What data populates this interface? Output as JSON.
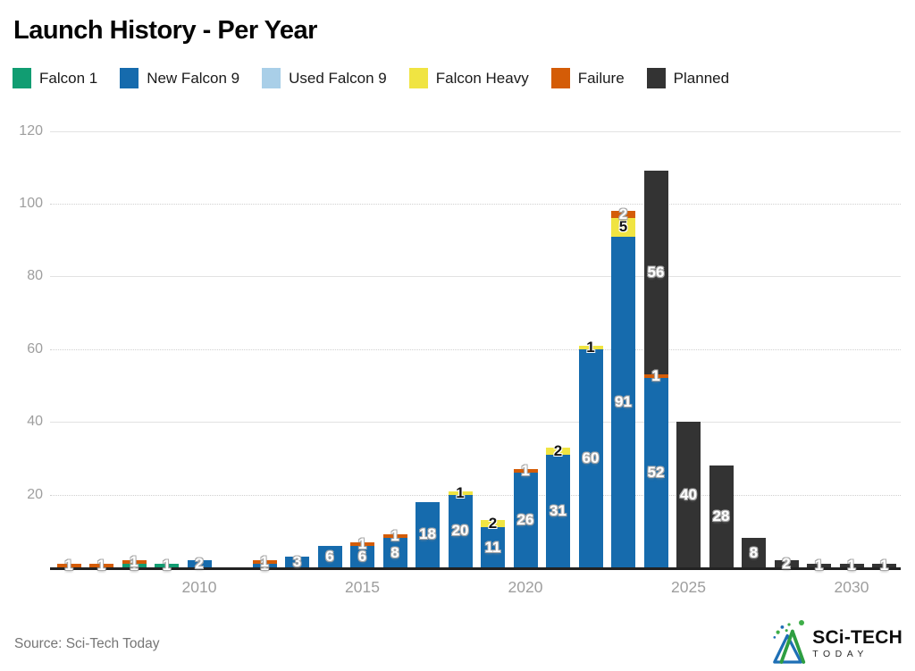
{
  "title": "Launch History - Per Year",
  "source": "Source: Sci-Tech Today",
  "logo": {
    "line1": "SCi-TECH",
    "line2": "TODAY"
  },
  "chart_data": {
    "type": "bar",
    "stacked": true,
    "title": "Launch History - Per Year",
    "xlabel": "",
    "ylabel": "",
    "ylim": [
      0,
      120
    ],
    "grid": true,
    "legend_position": "top",
    "categories": [
      2006,
      2007,
      2008,
      2009,
      2010,
      2011,
      2012,
      2013,
      2014,
      2015,
      2016,
      2017,
      2018,
      2019,
      2020,
      2021,
      2022,
      2023,
      2024,
      2025,
      2026,
      2027,
      2028,
      2029,
      2030,
      2031
    ],
    "y_ticks": [
      20,
      40,
      60,
      80,
      100,
      120
    ],
    "x_ticks": [
      2010,
      2015,
      2020,
      2025,
      2030
    ],
    "series": [
      {
        "name": "Falcon 1",
        "color": "#119d72",
        "label_color": "white",
        "values": [
          0,
          0,
          1,
          1,
          0,
          0,
          0,
          0,
          0,
          0,
          0,
          0,
          0,
          0,
          0,
          0,
          0,
          0,
          0,
          0,
          0,
          0,
          0,
          0,
          0,
          0
        ]
      },
      {
        "name": "New Falcon 9",
        "color": "#166bad",
        "label_color": "white",
        "values": [
          0,
          0,
          0,
          0,
          2,
          0,
          1,
          3,
          6,
          6,
          8,
          18,
          20,
          11,
          26,
          31,
          60,
          91,
          52,
          0,
          0,
          0,
          0,
          0,
          0,
          0
        ]
      },
      {
        "name": "Used Falcon 9",
        "color": "#a9cfe8",
        "label_color": "white",
        "values": [
          0,
          0,
          0,
          0,
          0,
          0,
          0,
          0,
          0,
          0,
          0,
          0,
          0,
          0,
          0,
          0,
          0,
          0,
          0,
          0,
          0,
          0,
          0,
          0,
          0,
          0
        ]
      },
      {
        "name": "Falcon Heavy",
        "color": "#f0e442",
        "label_color": "black",
        "values": [
          0,
          0,
          0,
          0,
          0,
          0,
          0,
          0,
          0,
          0,
          0,
          0,
          1,
          2,
          0,
          2,
          1,
          5,
          0,
          0,
          0,
          0,
          0,
          0,
          0,
          0
        ]
      },
      {
        "name": "Failure",
        "color": "#d45c07",
        "label_color": "white",
        "values": [
          1,
          1,
          1,
          0,
          0,
          0,
          1,
          0,
          0,
          1,
          1,
          0,
          0,
          0,
          1,
          0,
          0,
          2,
          1,
          0,
          0,
          0,
          0,
          0,
          0,
          0
        ]
      },
      {
        "name": "Planned",
        "color": "#333333",
        "label_color": "white",
        "values": [
          0,
          0,
          0,
          0,
          0,
          0,
          0,
          0,
          0,
          0,
          0,
          0,
          0,
          0,
          0,
          0,
          0,
          0,
          56,
          40,
          28,
          8,
          2,
          1,
          1,
          1
        ]
      }
    ]
  }
}
